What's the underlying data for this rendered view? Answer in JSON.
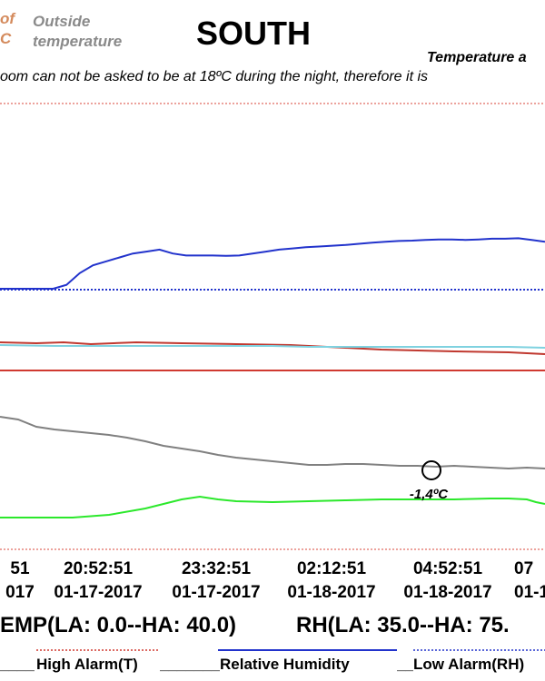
{
  "header": {
    "legend_fragment": "of\nC",
    "outside_label": "Outside\ntemperature",
    "title": "SOUTH",
    "subtitle": "Temperature a",
    "note": "oom can not be asked to be at 18ºC during the night, therefore it is"
  },
  "annotation": {
    "text": "-1,4ºC"
  },
  "limits": {
    "temp": "EMP(LA: 0.0--HA: 40.0)",
    "rh": "RH(LA: 35.0--HA: 75."
  },
  "legend": [
    {
      "label": "High Alarm(T)",
      "color": "#d03a30"
    },
    {
      "label": "Relative Humidity",
      "color": "#2233cc"
    },
    {
      "label": "Low Alarm(RH)",
      "color": "#2233cc"
    }
  ],
  "chart_data": {
    "type": "line",
    "x_ticks": [
      {
        "time": "51",
        "date": "017"
      },
      {
        "time": "20:52:51",
        "date": "01-17-2017"
      },
      {
        "time": "23:32:51",
        "date": "01-17-2017"
      },
      {
        "time": "02:12:51",
        "date": "01-18-2017"
      },
      {
        "time": "04:52:51",
        "date": "01-18-2017"
      },
      {
        "time": "07",
        "date": "01-1"
      }
    ],
    "series": [
      {
        "name": "Relative Humidity",
        "color": "#2233cc",
        "values": [
          37,
          37,
          37,
          37,
          37,
          38,
          41,
          43,
          44,
          45,
          46,
          46.5,
          47,
          46,
          45.5,
          45.5,
          45.5,
          45.4,
          45.5,
          46,
          46.5,
          47,
          47.3,
          47.6,
          47.8,
          48,
          48.2,
          48.5,
          48.8,
          49,
          49.2,
          49.3,
          49.5,
          49.6,
          49.6,
          49.5,
          49.6,
          49.8,
          49.8,
          49.9,
          49.5,
          49
        ]
      },
      {
        "name": "High Alarm(T)",
        "color": "#d03a30",
        "values": []
      },
      {
        "name": "Low Alarm(RH)",
        "color": "#2233cc",
        "values": []
      }
    ],
    "annotations": [
      {
        "text": "-1,4ºC"
      }
    ]
  }
}
